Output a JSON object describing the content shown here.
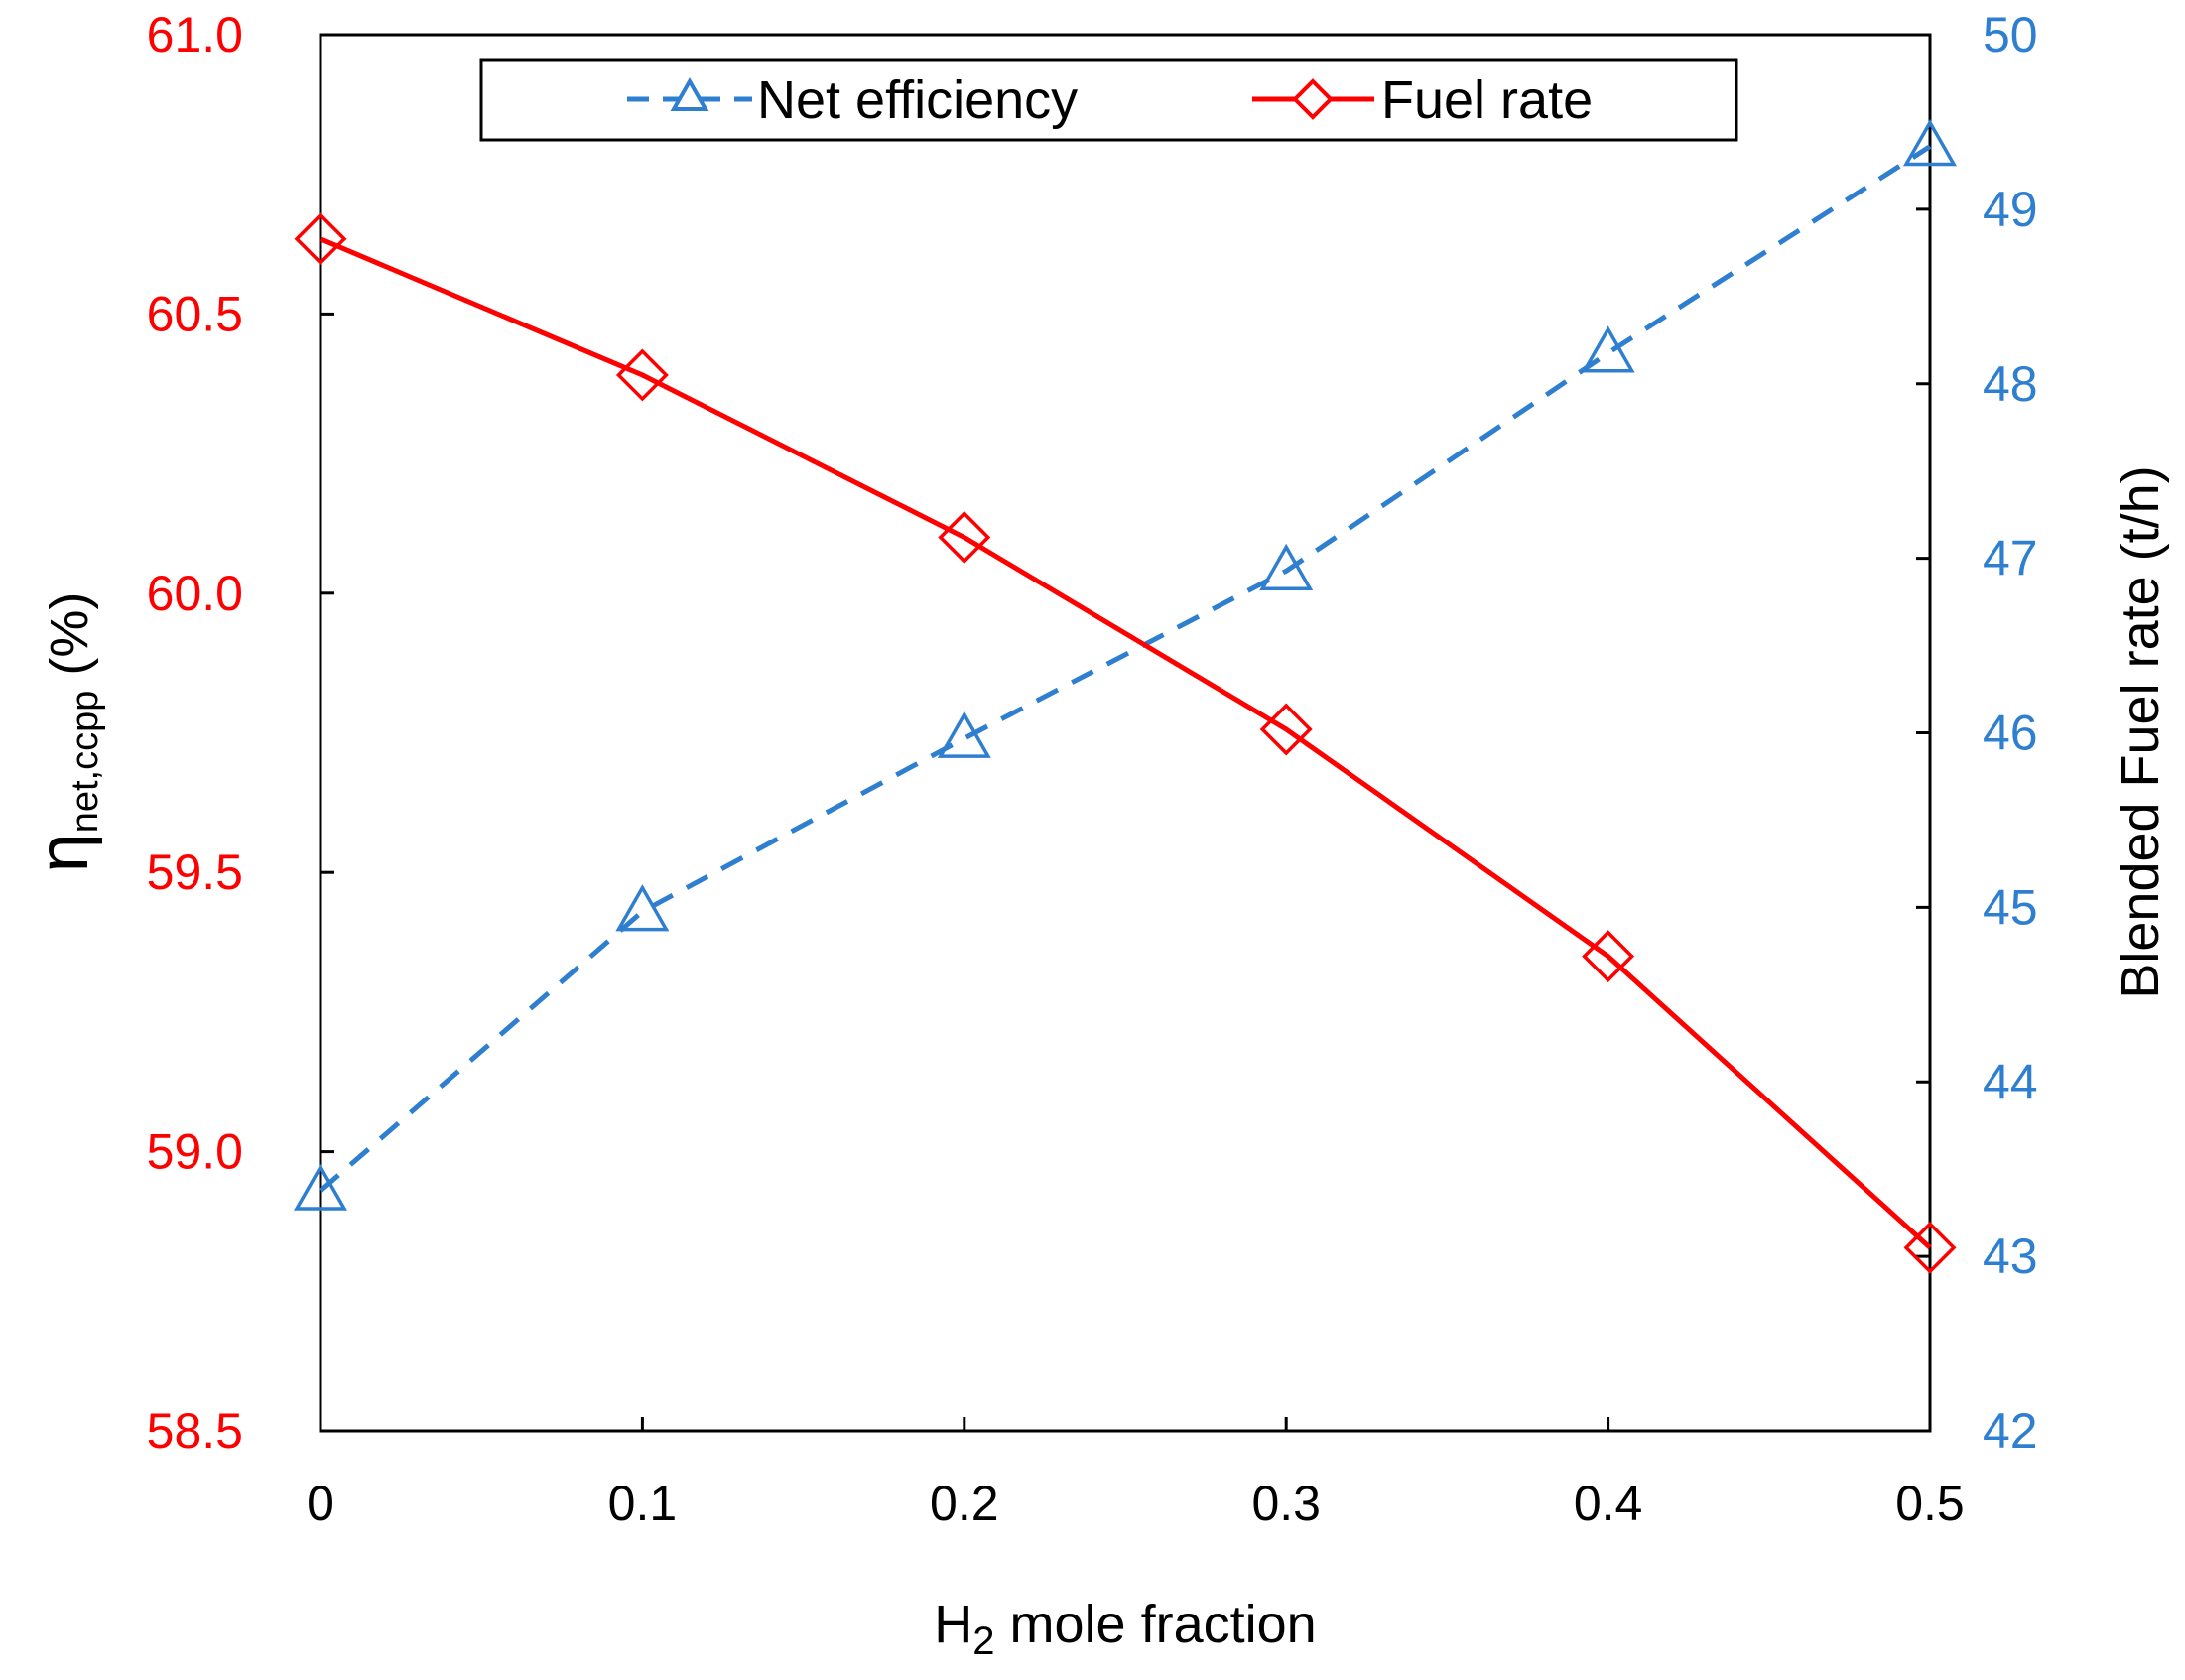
{
  "chart_data": {
    "type": "line",
    "title": "",
    "xlabel": {
      "main": "H",
      "sub": "2",
      "rest": " mole fraction"
    },
    "ylabel_left": {
      "symbol": "η",
      "sub": "net,ccpp",
      "rest": " (%)"
    },
    "ylabel_right": "Blended Fuel rate (t/h)",
    "x": [
      0,
      0.1,
      0.2,
      0.3,
      0.4,
      0.5
    ],
    "x_tick_labels": [
      "0",
      "0.1",
      "0.2",
      "0.3",
      "0.4",
      "0.5"
    ],
    "xlim": [
      0,
      0.5
    ],
    "ylim_left": [
      58.5,
      61.0
    ],
    "ylim_right": [
      42,
      50
    ],
    "y_left_ticks": [
      "58.5",
      "59.0",
      "59.5",
      "60.0",
      "60.5",
      "61.0"
    ],
    "y_right_ticks": [
      "42",
      "43",
      "44",
      "45",
      "46",
      "47",
      "48",
      "49",
      "50"
    ],
    "grid": false,
    "legend_position": "top-center",
    "series": [
      {
        "name": "Net efficiency",
        "axis": "left",
        "values": [
          58.93,
          59.43,
          59.74,
          60.04,
          60.43,
          60.8
        ],
        "color": "#2f7fd0",
        "line_style": "dashed",
        "marker": "triangle"
      },
      {
        "name": "Fuel rate",
        "axis": "right",
        "values": [
          48.83,
          48.05,
          47.12,
          46.02,
          44.72,
          43.05
        ],
        "color": "#ff0000",
        "line_style": "solid",
        "marker": "diamond"
      }
    ],
    "colors": {
      "left_axis": "#ff0000",
      "right_axis": "#2f7fd0",
      "frame": "#000000"
    }
  }
}
